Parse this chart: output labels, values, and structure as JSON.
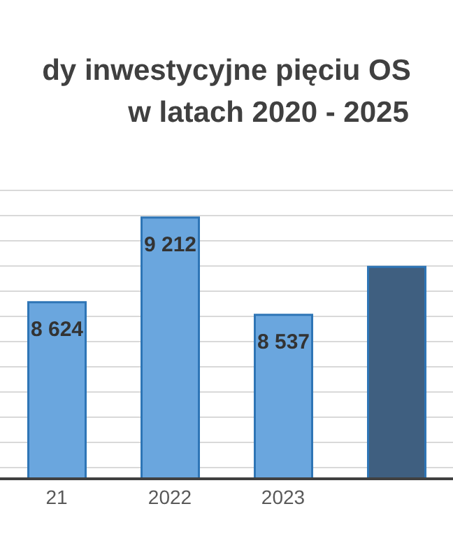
{
  "chart_data": {
    "type": "bar",
    "title": "dy inwestycyjne pięciu OS",
    "subtitle": "w latach 2020 - 2025",
    "categories": [
      "21",
      "2022",
      "2023",
      null
    ],
    "values": [
      8624,
      9212,
      8537,
      8870
    ],
    "colors": [
      "#6aa6de",
      "#6aa6de",
      "#6aa6de",
      "#3f5f80"
    ],
    "value_labels": [
      "8 624",
      "9 212",
      "8 537",
      null
    ],
    "ylim": [
      7400,
      9400
    ],
    "grid": "y",
    "tick_labels": "x"
  }
}
